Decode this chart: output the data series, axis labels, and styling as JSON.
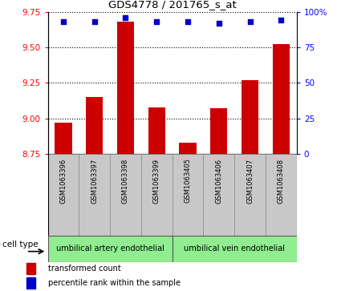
{
  "title": "GDS4778 / 201765_s_at",
  "samples": [
    "GSM1063396",
    "GSM1063397",
    "GSM1063398",
    "GSM1063399",
    "GSM1063405",
    "GSM1063406",
    "GSM1063407",
    "GSM1063408"
  ],
  "transformed_counts": [
    8.97,
    9.15,
    9.68,
    9.08,
    8.83,
    9.07,
    9.27,
    9.52
  ],
  "percentile_ranks": [
    93,
    93,
    96,
    93,
    93,
    92,
    93,
    94
  ],
  "ylim_left": [
    8.75,
    9.75
  ],
  "ylim_right": [
    0,
    100
  ],
  "yticks_left": [
    8.75,
    9.0,
    9.25,
    9.5,
    9.75
  ],
  "yticks_right": [
    0,
    25,
    50,
    75,
    100
  ],
  "bar_color": "#cc0000",
  "dot_color": "#0000cc",
  "background_color": "#ffffff",
  "bar_bg_color": "#c8c8c8",
  "cell_type_color": "#90ee90",
  "cell_types": [
    "umbilical artery endothelial",
    "umbilical vein endothelial"
  ],
  "cell_type_groups": [
    4,
    4
  ],
  "legend_labels": [
    "transformed count",
    "percentile rank within the sample"
  ],
  "cell_type_label": "cell type"
}
